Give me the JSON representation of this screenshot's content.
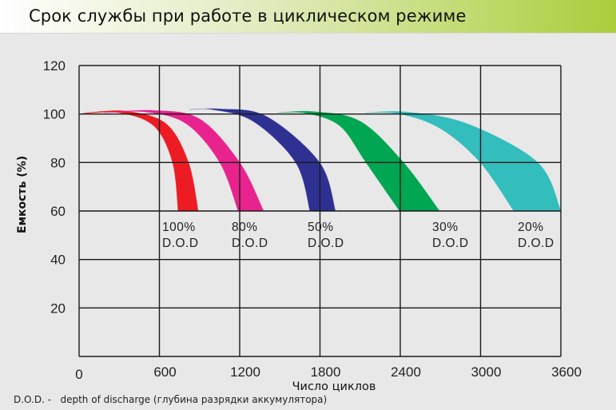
{
  "header": {
    "title": "Срок службы при работе в циклическом режиме"
  },
  "footnote": {
    "abbr": "D.O.D. -",
    "text": "depth of discharge (глубина разрядки аккумулятора)"
  },
  "chart_data": {
    "type": "area",
    "title": "Срок службы при работе в циклическом режиме",
    "xlabel": "Число циклов",
    "ylabel": "Емкость (%)",
    "xlim": [
      0,
      3600
    ],
    "ylim": [
      0,
      120
    ],
    "x_ticks": [
      0,
      600,
      1200,
      1800,
      2400,
      3000,
      3600
    ],
    "y_ticks": [
      20,
      40,
      60,
      80,
      100,
      120
    ],
    "grid": true,
    "series": [
      {
        "name": "100% D.O.D",
        "label_line1": "100%",
        "label_line2": "D.O.D",
        "color": "#ed1c24",
        "start": [
          0,
          100
        ],
        "peak": [
          250,
          101
        ],
        "inner": [
          [
            0,
            100
          ],
          [
            300,
            100.5
          ],
          [
            560,
            95
          ],
          [
            698,
            80
          ],
          [
            740,
            60
          ]
        ],
        "outer": [
          [
            60,
            100.5
          ],
          [
            350,
            101.2
          ],
          [
            650,
            96
          ],
          [
            818,
            80
          ],
          [
            890,
            60
          ]
        ],
        "end_cycles_range": [
          740,
          890
        ]
      },
      {
        "name": "80% D.O.D",
        "label_line1": "80%",
        "label_line2": "D.O.D",
        "color": "#e9238e",
        "start": [
          185,
          100.5
        ],
        "peak": [
          500,
          101.3
        ],
        "inner": [
          [
            185,
            100.5
          ],
          [
            500,
            100.8
          ],
          [
            800,
            96
          ],
          [
            1051,
            80
          ],
          [
            1188,
            60
          ]
        ],
        "outer": [
          [
            185,
            100.5
          ],
          [
            550,
            101.5
          ],
          [
            900,
            98
          ],
          [
            1200,
            80
          ],
          [
            1379,
            60
          ]
        ],
        "end_cycles_range": [
          1188,
          1379
        ]
      },
      {
        "name": "50% D.O.D",
        "label_line1": "50%",
        "label_line2": "D.O.D",
        "color": "#2e3192",
        "start": [
          824,
          101.8
        ],
        "peak": [
          1000,
          102
        ],
        "inner": [
          [
            824,
            101.8
          ],
          [
            1000,
            101.8
          ],
          [
            1300,
            97
          ],
          [
            1618,
            80
          ],
          [
            1725,
            60
          ]
        ],
        "outer": [
          [
            824,
            101.8
          ],
          [
            1050,
            102.1
          ],
          [
            1400,
            99
          ],
          [
            1797,
            80
          ],
          [
            1916,
            60
          ]
        ],
        "end_cycles_range": [
          1725,
          1916
        ]
      },
      {
        "name": "30% D.O.D",
        "label_line1": "30%",
        "label_line2": "D.O.D",
        "color": "#00a651",
        "start": [
          1481,
          100.5
        ],
        "peak": [
          1650,
          100.8
        ],
        "inner": [
          [
            1481,
            100.5
          ],
          [
            1700,
            100.3
          ],
          [
            1950,
            95
          ],
          [
            2143,
            80
          ],
          [
            2394,
            60
          ]
        ],
        "outer": [
          [
            1481,
            100.5
          ],
          [
            1750,
            101
          ],
          [
            2100,
            97
          ],
          [
            2424,
            80
          ],
          [
            2693,
            60
          ]
        ],
        "end_cycles_range": [
          2394,
          2693
        ]
      },
      {
        "name": "20% D.O.D",
        "label_line1": "20%",
        "label_line2": "D.O.D",
        "color": "#33bdbd",
        "start": [
          2137,
          100.5
        ],
        "peak": [
          2300,
          100.6
        ],
        "inner": [
          [
            2137,
            100.5
          ],
          [
            2400,
            100
          ],
          [
            2700,
            94
          ],
          [
            2997,
            80
          ],
          [
            3248,
            60
          ]
        ],
        "outer": [
          [
            2137,
            100.5
          ],
          [
            2450,
            100.8
          ],
          [
            2900,
            96
          ],
          [
            3427,
            80
          ],
          [
            3600,
            60
          ]
        ],
        "end_cycles_range": [
          3248,
          3600
        ]
      }
    ],
    "label_positions": [
      {
        "x": 203,
        "y": 289
      },
      {
        "x": 290,
        "y": 289
      },
      {
        "x": 385,
        "y": 289
      },
      {
        "x": 541,
        "y": 289
      },
      {
        "x": 648,
        "y": 289
      }
    ]
  }
}
